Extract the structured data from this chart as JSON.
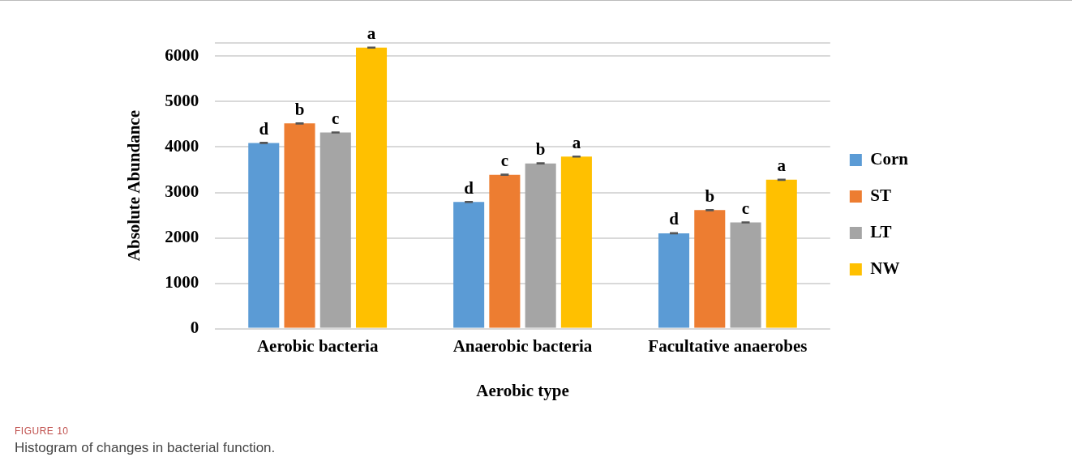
{
  "chart_data": {
    "type": "bar",
    "xlabel": "Aerobic type",
    "ylabel": "Absolute Abundance",
    "categories": [
      "Aerobic bacteria",
      "Anaerobic bacteria",
      "Facultative anaerobes"
    ],
    "series": [
      {
        "name": "Corn",
        "color": "#5b9bd5",
        "values": [
          4090,
          2790,
          2100
        ],
        "errors": [
          10,
          10,
          10
        ],
        "value_labels": [
          "d",
          "d",
          "d"
        ]
      },
      {
        "name": "ST",
        "color": "#ed7d31",
        "values": [
          4520,
          3390,
          2610
        ],
        "errors": [
          10,
          10,
          10
        ],
        "value_labels": [
          "b",
          "c",
          "b"
        ]
      },
      {
        "name": "LT",
        "color": "#a5a5a5",
        "values": [
          4320,
          3640,
          2340
        ],
        "errors": [
          10,
          10,
          10
        ],
        "value_labels": [
          "c",
          "b",
          "c"
        ]
      },
      {
        "name": "NW",
        "color": "#ffc000",
        "values": [
          6190,
          3790,
          3280
        ],
        "errors": [
          10,
          10,
          10
        ],
        "value_labels": [
          "a",
          "a",
          "a"
        ]
      }
    ],
    "ylim": [
      0,
      6300
    ],
    "yticks": [
      0,
      1000,
      2000,
      3000,
      4000,
      5000,
      6000,
      {
        "value": 6300,
        "label": null
      }
    ],
    "grid": "y",
    "legend": "right",
    "annotations": [
      "FIGURE 10",
      "Histogram of changes in bacterial function."
    ]
  }
}
